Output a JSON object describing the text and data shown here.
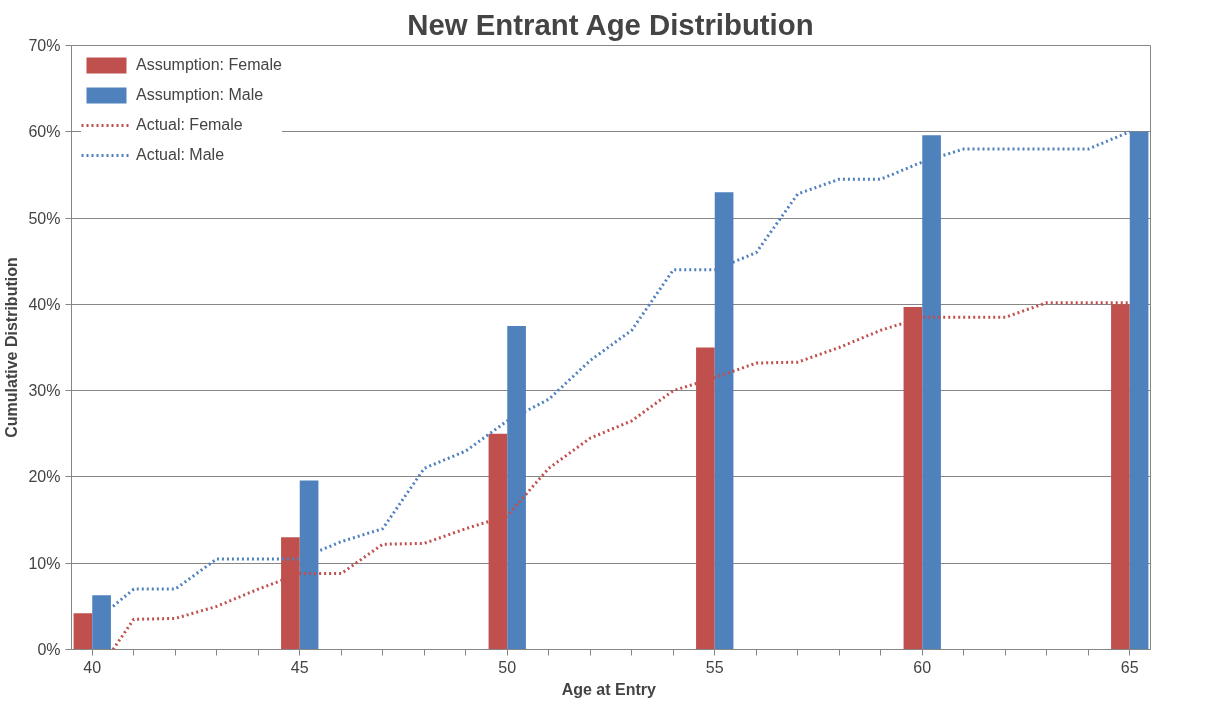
{
  "chart_data": {
    "type": "bar",
    "title": "New Entrant Age Distribution",
    "xlabel": "Age  at Entry",
    "ylabel": "Cumulative Distribution",
    "x": [
      40,
      45,
      50,
      55,
      60,
      65
    ],
    "series": [
      {
        "name": "Assumption: Female",
        "color": "#c0504d",
        "values": [
          4.2,
          13,
          25,
          35,
          39.7,
          40
        ]
      },
      {
        "name": "Assumption: Male",
        "color": "#4f81bd",
        "values": [
          6.3,
          19.6,
          37.5,
          53,
          59.6,
          60
        ]
      },
      {
        "name": "Actual: Female",
        "type": "line",
        "line_style": "dotted",
        "color": "#c0504d",
        "x": [
          40.5,
          41,
          42,
          43,
          44,
          45,
          46,
          47,
          48,
          49,
          50,
          51,
          52,
          53,
          54,
          55,
          56,
          57,
          58,
          59,
          60,
          61,
          62,
          63,
          64,
          65
        ],
        "values": [
          0,
          3.5,
          3.6,
          5,
          7,
          8.8,
          8.8,
          12.2,
          12.3,
          14,
          15.5,
          21,
          24.5,
          26.5,
          30,
          31.5,
          33.2,
          33.3,
          35,
          37,
          38.5,
          38.5,
          38.5,
          40.2,
          40.2,
          40.2
        ]
      },
      {
        "name": "Actual: Male",
        "type": "line",
        "line_style": "dotted",
        "color": "#4f81bd",
        "x": [
          40.5,
          41,
          42,
          43,
          44,
          45,
          46,
          47,
          48,
          49,
          50,
          51,
          52,
          53,
          54,
          55,
          56,
          57,
          58,
          59,
          60,
          61,
          62,
          63,
          64,
          65
        ],
        "values": [
          5,
          7,
          7,
          10.5,
          10.5,
          10.5,
          12.5,
          14,
          21,
          23,
          26.5,
          29,
          33.5,
          37,
          44,
          44,
          46,
          52.8,
          54.5,
          54.5,
          56.5,
          58,
          58,
          58,
          58,
          60
        ]
      }
    ],
    "xlim": [
      39.5,
      65.5
    ],
    "xticks": [
      40,
      {
        "value": 41,
        "label": null
      },
      {
        "value": 42,
        "label": null
      },
      {
        "value": 43,
        "label": null
      },
      {
        "value": 44,
        "label": null
      },
      45,
      {
        "value": 46,
        "label": null
      },
      {
        "value": 47,
        "label": null
      },
      {
        "value": 48,
        "label": null
      },
      {
        "value": 49,
        "label": null
      },
      50,
      {
        "value": 51,
        "label": null
      },
      {
        "value": 52,
        "label": null
      },
      {
        "value": 53,
        "label": null
      },
      {
        "value": 54,
        "label": null
      },
      55,
      {
        "value": 56,
        "label": null
      },
      {
        "value": 57,
        "label": null
      },
      {
        "value": 58,
        "label": null
      },
      {
        "value": 59,
        "label": null
      },
      60,
      {
        "value": 61,
        "label": null
      },
      {
        "value": 62,
        "label": null
      },
      {
        "value": 63,
        "label": null
      },
      {
        "value": 64,
        "label": null
      },
      65
    ],
    "ylim": [
      0,
      70
    ],
    "yticks": [
      {
        "value": 0,
        "label": "0%"
      },
      {
        "value": 10,
        "label": "10%"
      },
      {
        "value": 20,
        "label": "20%"
      },
      {
        "value": 30,
        "label": "30%"
      },
      {
        "value": 40,
        "label": "40%"
      },
      {
        "value": 50,
        "label": "50%"
      },
      {
        "value": 60,
        "label": "60%"
      },
      {
        "value": 70,
        "label": "70%"
      }
    ],
    "grid": "y",
    "legend": "top left"
  }
}
